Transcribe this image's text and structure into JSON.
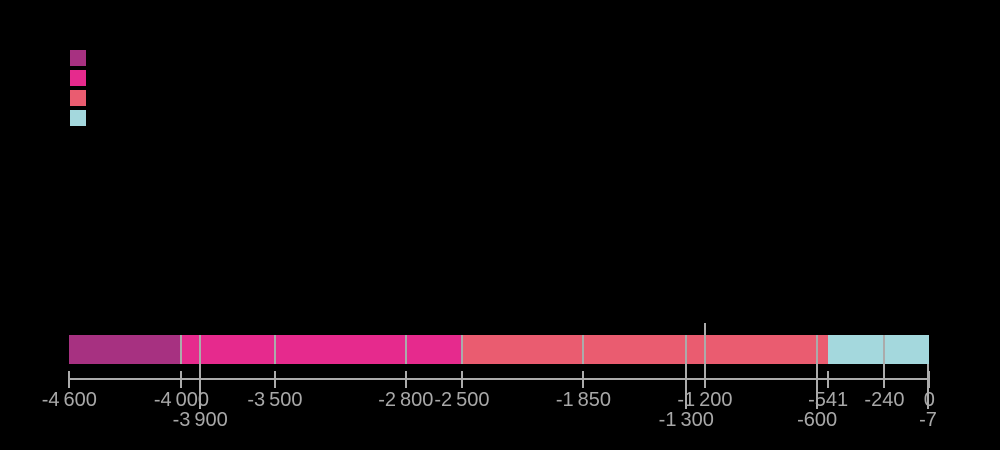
{
  "page": {
    "background_color": "#000000"
  },
  "legend": {
    "swatches": [
      {
        "name": "legend-swatch-1",
        "color": "#a73181"
      },
      {
        "name": "legend-swatch-2",
        "color": "#e62a8d"
      },
      {
        "name": "legend-swatch-3",
        "color": "#ea5c70"
      },
      {
        "name": "legend-swatch-4",
        "color": "#a4d8dd"
      }
    ]
  },
  "chart_data": {
    "type": "bar",
    "subtype": "horizontal-stacked-timeline",
    "x_domain": [
      -4600,
      0
    ],
    "grid": false,
    "legend_position": "top-left",
    "bar_segments": [
      {
        "start": -4600,
        "end": -4000,
        "color": "#a73181"
      },
      {
        "start": -4000,
        "end": -2500,
        "color": "#e62a8d"
      },
      {
        "start": -2500,
        "end": -541,
        "color": "#ea5c70"
      },
      {
        "start": -541,
        "end": 0,
        "color": "#a4d8dd"
      }
    ],
    "boundary_lines": [
      {
        "value": -4600,
        "extent": "tick"
      },
      {
        "value": -4000,
        "extent": "bar-and-tick"
      },
      {
        "value": -3900,
        "extent": "bar-to-label2"
      },
      {
        "value": -3500,
        "extent": "bar-and-tick"
      },
      {
        "value": -2800,
        "extent": "bar-and-tick"
      },
      {
        "value": -2500,
        "extent": "bar-and-tick"
      },
      {
        "value": -1850,
        "extent": "bar-and-tick"
      },
      {
        "value": -1300,
        "extent": "bar-to-label2"
      },
      {
        "value": -1200,
        "extent": "above-bar-to-tick"
      },
      {
        "value": -600,
        "extent": "bar-to-label2"
      },
      {
        "value": -541,
        "extent": "tick"
      },
      {
        "value": -240,
        "extent": "bar-to-tick"
      },
      {
        "value": -7,
        "extent": "barbottom-to-label2"
      },
      {
        "value": 0,
        "extent": "tick"
      }
    ],
    "tick_labels_row1": [
      {
        "value": -4600,
        "label": "-4 600"
      },
      {
        "value": -4000,
        "label": "-4 000"
      },
      {
        "value": -3500,
        "label": "-3 500"
      },
      {
        "value": -2800,
        "label": "-2 800"
      },
      {
        "value": -2500,
        "label": "-2 500"
      },
      {
        "value": -1850,
        "label": "-1 850"
      },
      {
        "value": -1200,
        "label": "-1 200"
      },
      {
        "value": -541,
        "label": "-541"
      },
      {
        "value": -240,
        "label": "-240"
      },
      {
        "value": 0,
        "label": "0"
      }
    ],
    "tick_labels_row2": [
      {
        "value": -3900,
        "label": "-3 900"
      },
      {
        "value": -1300,
        "label": "-1 300"
      },
      {
        "value": -600,
        "label": "-600"
      },
      {
        "value": -7,
        "label": "-7"
      }
    ],
    "axis_color": "#ababab",
    "label_color": "#a8a8a8"
  }
}
